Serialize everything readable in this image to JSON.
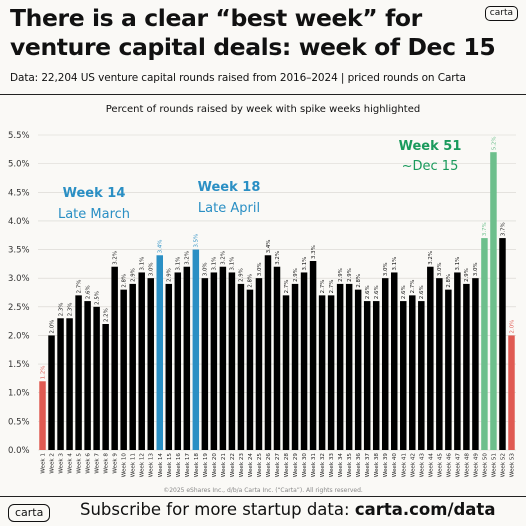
{
  "header": {
    "title_line1": "There is a clear “best week” for",
    "title_line2": "venture capital deals: week of Dec 15",
    "logo": "carta",
    "source": "Data: 22,204 US venture capital rounds raised from 2016–2024 | priced rounds on Carta"
  },
  "footer": {
    "logo": "carta",
    "text": "Subscribe for more startup data: ",
    "link": "carta.com/data"
  },
  "colors": {
    "black": "#000000",
    "red": "#e05a52",
    "blue": "#2a8fc4",
    "green": "#6dbf8c",
    "green_dark": "#1a9a5c"
  },
  "chart_data": {
    "type": "bar",
    "title": "Percent of rounds raised by week with spike weeks highlighted",
    "credit": "©2025 eShares Inc., d/b/a Carta Inc. (“Carta”). All rights reserved.",
    "ylim": [
      0,
      5.5
    ],
    "yticks": [
      "0.0%",
      "0.5%",
      "1.0%",
      "1.5%",
      "2.0%",
      "2.5%",
      "3.0%",
      "3.5%",
      "4.0%",
      "4.5%",
      "5.0%",
      "5.5%"
    ],
    "grid": true,
    "categories": [
      "Week 1",
      "Week 2",
      "Week 3",
      "Week 4",
      "Week 5",
      "Week 6",
      "Week 7",
      "Week 8",
      "Week 9",
      "Week 10",
      "Week 11",
      "Week 12",
      "Week 13",
      "Week 14",
      "Week 15",
      "Week 16",
      "Week 17",
      "Week 18",
      "Week 19",
      "Week 20",
      "Week 21",
      "Week 22",
      "Week 23",
      "Week 24",
      "Week 25",
      "Week 26",
      "Week 27",
      "Week 28",
      "Week 29",
      "Week 30",
      "Week 31",
      "Week 32",
      "Week 33",
      "Week 34",
      "Week 35",
      "Week 36",
      "Week 37",
      "Week 38",
      "Week 39",
      "Week 40",
      "Week 41",
      "Week 42",
      "Week 43",
      "Week 44",
      "Week 45",
      "Week 46",
      "Week 47",
      "Week 48",
      "Week 49",
      "Week 50",
      "Week 51",
      "Week 52",
      "Week 53"
    ],
    "values": [
      1.2,
      2.0,
      2.3,
      2.3,
      2.7,
      2.6,
      2.5,
      2.2,
      3.2,
      2.8,
      2.9,
      3.1,
      3.0,
      3.4,
      2.9,
      3.1,
      3.2,
      3.5,
      3.0,
      3.1,
      3.2,
      3.1,
      2.9,
      2.8,
      3.0,
      3.4,
      3.2,
      2.7,
      2.9,
      3.1,
      3.3,
      2.7,
      2.7,
      2.9,
      2.9,
      2.8,
      2.6,
      2.6,
      3.0,
      3.1,
      2.6,
      2.7,
      2.6,
      3.2,
      3.0,
      2.8,
      3.1,
      2.9,
      3.0,
      3.7,
      5.2,
      3.7,
      2.0
    ],
    "value_labels": [
      "1.2%",
      "2.0%",
      "2.3%",
      "2.3%",
      "2.7%",
      "2.6%",
      "2.5%",
      "2.2%",
      "3.2%",
      "2.8%",
      "2.9%",
      "3.1%",
      "3.0%",
      "3.4%",
      "2.9%",
      "3.1%",
      "3.2%",
      "3.5%",
      "3.0%",
      "3.1%",
      "3.2%",
      "3.1%",
      "2.9%",
      "2.8%",
      "3.0%",
      "3.4%",
      "3.2%",
      "2.7%",
      "2.9%",
      "3.1%",
      "3.3%",
      "2.7%",
      "2.7%",
      "2.9%",
      "2.9%",
      "2.8%",
      "2.6%",
      "2.6%",
      "3.0%",
      "3.1%",
      "2.6%",
      "2.7%",
      "2.6%",
      "3.2%",
      "3.0%",
      "2.8%",
      "3.1%",
      "2.9%",
      "3.0%",
      "3.7%",
      "5.2%",
      "3.7%",
      "2.0%"
    ],
    "highlights": {
      "0": "red",
      "13": "blue",
      "17": "blue",
      "49": "green",
      "50": "green",
      "52": "red"
    },
    "annotations": [
      {
        "index": 13,
        "line1": "Week 14",
        "line2": "Late March",
        "color": "blue"
      },
      {
        "index": 17,
        "line1": "Week 18",
        "line2": "Late April",
        "color": "blue"
      },
      {
        "index": 50,
        "line1": "Week 51",
        "line2": "~Dec 15",
        "color": "green_dark"
      }
    ]
  }
}
